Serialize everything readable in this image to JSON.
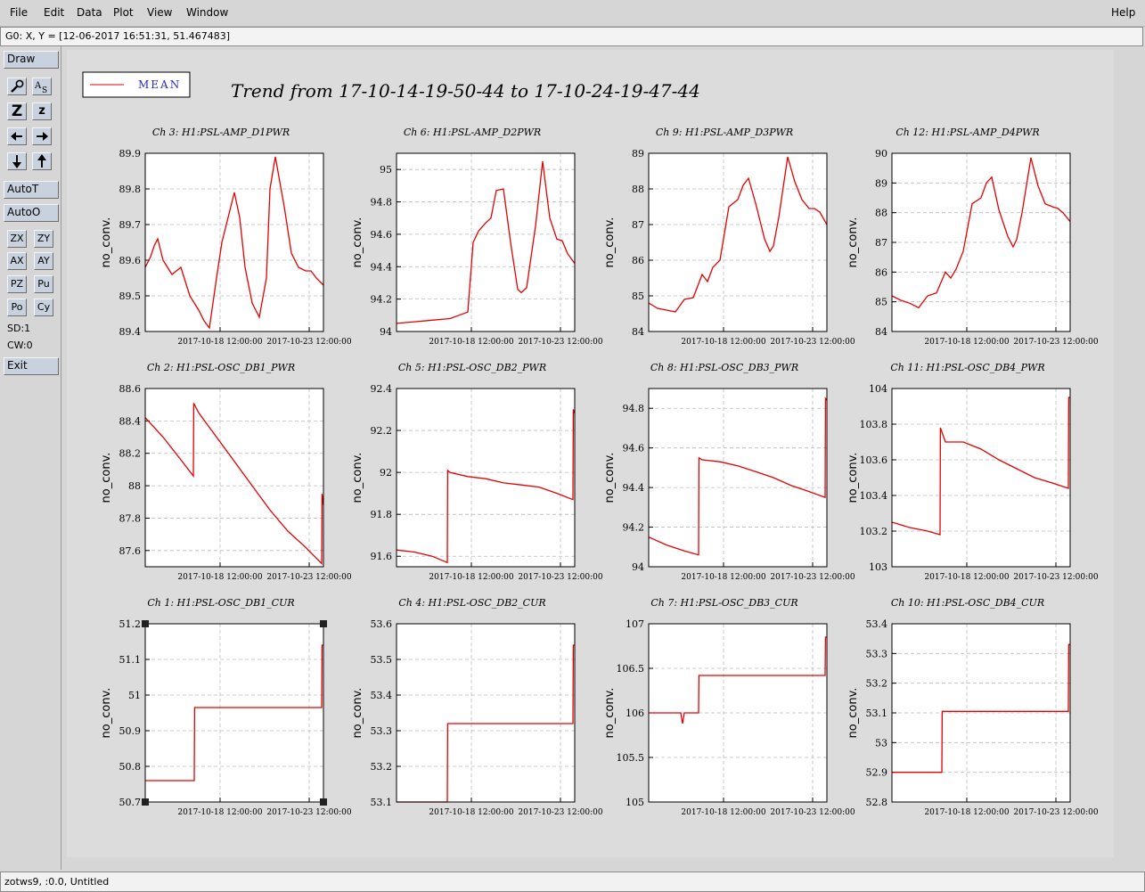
{
  "menubar": {
    "items": [
      "File",
      "Edit",
      "Data",
      "Plot",
      "View",
      "Window"
    ],
    "help": "Help"
  },
  "coords": "G0: X, Y = [12-06-2017 16:51:31, 51.467483]",
  "toolbar": {
    "draw": "Draw",
    "autot": "AutoT",
    "autoo": "AutoO",
    "z_big": "Z",
    "z_small": "z",
    "grid": [
      "ZX",
      "ZY",
      "AX",
      "AY",
      "PZ",
      "Pu",
      "Po",
      "Cy"
    ],
    "sd": "SD:1",
    "cw": "CW:0",
    "exit": "Exit"
  },
  "status": "zotws9, :0.0, Untitled",
  "legend": {
    "label": "MEAN",
    "color": "#e60000"
  },
  "title": "Trend from 17-10-14-19-50-44 to 17-10-24-19-47-44",
  "colors": {
    "series": "#e60000",
    "grid": "#bbbbbb",
    "panel": "#d6d6d6"
  },
  "chart_data": [
    {
      "type": "line",
      "title": "Ch 3: H1:PSL-AMP_D1PWR",
      "ylabel": "no_conv.",
      "ylim": [
        89.4,
        89.9
      ],
      "yticks": [
        "89.4",
        "89.5",
        "89.6",
        "89.7",
        "89.8",
        "89.9"
      ],
      "xticks": [
        "2017-10-18 12:00:00",
        "2017-10-23 12:00:00"
      ],
      "x": [
        0,
        0.3,
        0.5,
        0.7,
        1,
        1.5,
        2,
        2.5,
        3,
        3.3,
        3.6,
        4,
        4.3,
        4.8,
        5,
        5.3,
        5.6,
        6,
        6.4,
        6.8,
        7,
        7.3,
        7.8,
        8.2,
        8.6,
        9,
        9.3,
        9.6,
        10
      ],
      "y": [
        89.58,
        89.61,
        89.64,
        89.66,
        89.6,
        89.56,
        89.58,
        89.5,
        89.46,
        89.43,
        89.41,
        89.55,
        89.65,
        89.75,
        89.79,
        89.72,
        89.58,
        89.48,
        89.44,
        89.55,
        89.8,
        89.89,
        89.75,
        89.62,
        89.58,
        89.57,
        89.57,
        89.55,
        89.53
      ]
    },
    {
      "type": "line",
      "title": "Ch 6: H1:PSL-AMP_D2PWR",
      "ylabel": "no_conv.",
      "ylim": [
        94,
        95.1
      ],
      "yticks": [
        "94",
        "94.2",
        "94.4",
        "94.6",
        "94.8",
        "95"
      ],
      "xticks": [
        "2017-10-18 12:00:00",
        "2017-10-23 12:00:00"
      ],
      "x": [
        0,
        1,
        2,
        3,
        3.5,
        4,
        4.3,
        4.6,
        5,
        5.3,
        5.6,
        6,
        6.4,
        6.8,
        7,
        7.3,
        7.8,
        8.2,
        8.6,
        9,
        9.3,
        9.6,
        10
      ],
      "y": [
        94.05,
        94.06,
        94.07,
        94.08,
        94.1,
        94.12,
        94.55,
        94.62,
        94.67,
        94.7,
        94.87,
        94.88,
        94.55,
        94.26,
        94.24,
        94.27,
        94.65,
        95.05,
        94.7,
        94.57,
        94.56,
        94.48,
        94.42
      ]
    },
    {
      "type": "line",
      "title": "Ch 9: H1:PSL-AMP_D3PWR",
      "ylabel": "no_conv.",
      "ylim": [
        84,
        89
      ],
      "yticks": [
        "84",
        "85",
        "86",
        "87",
        "88",
        "89"
      ],
      "xticks": [
        "2017-10-18 12:00:00",
        "2017-10-23 12:00:00"
      ],
      "x": [
        0,
        0.5,
        1,
        1.5,
        2,
        2.5,
        3,
        3.3,
        3.6,
        4,
        4.5,
        5,
        5.3,
        5.6,
        6,
        6.5,
        6.8,
        7,
        7.3,
        7.8,
        8.2,
        8.6,
        9,
        9.3,
        9.6,
        10
      ],
      "y": [
        84.8,
        84.65,
        84.6,
        84.55,
        84.9,
        84.95,
        85.6,
        85.4,
        85.8,
        86.0,
        87.5,
        87.7,
        88.1,
        88.3,
        87.6,
        86.6,
        86.25,
        86.4,
        87.2,
        88.9,
        88.2,
        87.7,
        87.45,
        87.45,
        87.35,
        87.0
      ]
    },
    {
      "type": "line",
      "title": "Ch 12: H1:PSL-AMP_D4PWR",
      "ylabel": "no_conv.",
      "ylim": [
        84,
        90
      ],
      "yticks": [
        "84",
        "85",
        "86",
        "87",
        "88",
        "89",
        "90"
      ],
      "xticks": [
        "2017-10-18 12:00:00",
        "2017-10-23 12:00:00"
      ],
      "x": [
        0,
        0.5,
        1,
        1.5,
        2,
        2.5,
        3,
        3.3,
        3.6,
        4,
        4.5,
        5,
        5.3,
        5.6,
        6,
        6.5,
        6.8,
        7,
        7.3,
        7.8,
        8.2,
        8.6,
        9,
        9.3,
        9.6,
        10
      ],
      "y": [
        85.2,
        85.05,
        84.95,
        84.8,
        85.2,
        85.3,
        86.0,
        85.8,
        86.1,
        86.7,
        88.3,
        88.5,
        89.0,
        89.2,
        88.1,
        87.2,
        86.85,
        87.1,
        88.0,
        89.85,
        88.9,
        88.3,
        88.2,
        88.15,
        88.0,
        87.7
      ]
    },
    {
      "type": "line",
      "title": "Ch 2: H1:PSL-OSC_DB1_PWR",
      "ylabel": "no_conv.",
      "ylim": [
        87.5,
        88.6
      ],
      "yticks": [
        "87.6",
        "87.8",
        "88",
        "88.2",
        "88.4",
        "88.6"
      ],
      "xticks": [
        "2017-10-18 12:00:00",
        "2017-10-23 12:00:00"
      ],
      "x": [
        0,
        1,
        2,
        2.7,
        2.72,
        3,
        4,
        5,
        6,
        7,
        8,
        9,
        9.9,
        9.92,
        10
      ],
      "y": [
        88.42,
        88.3,
        88.16,
        88.06,
        88.51,
        88.45,
        88.3,
        88.15,
        88.0,
        87.85,
        87.72,
        87.62,
        87.52,
        87.95,
        87.88
      ]
    },
    {
      "type": "line",
      "title": "Ch 5: H1:PSL-OSC_DB2_PWR",
      "ylabel": "no_conv.",
      "ylim": [
        91.55,
        92.4
      ],
      "yticks": [
        "91.6",
        "91.8",
        "92",
        "92.2",
        "92.4"
      ],
      "xticks": [
        "2017-10-18 12:00:00",
        "2017-10-23 12:00:00"
      ],
      "x": [
        0,
        1,
        2,
        2.85,
        2.87,
        3,
        4,
        5,
        6,
        7,
        8,
        9,
        9.9,
        9.92,
        10
      ],
      "y": [
        91.63,
        91.62,
        91.6,
        91.57,
        92.01,
        92.0,
        91.98,
        91.97,
        91.95,
        91.94,
        91.93,
        91.9,
        91.87,
        92.3,
        92.28
      ]
    },
    {
      "type": "line",
      "title": "Ch 8: H1:PSL-OSC_DB3_PWR",
      "ylabel": "no_conv.",
      "ylim": [
        94,
        94.9
      ],
      "yticks": [
        "94",
        "94.2",
        "94.4",
        "94.6",
        "94.8"
      ],
      "xticks": [
        "2017-10-18 12:00:00",
        "2017-10-23 12:00:00"
      ],
      "x": [
        0,
        1,
        2,
        2.8,
        2.82,
        3,
        4,
        5,
        6,
        7,
        8,
        9,
        9.9,
        9.92,
        10
      ],
      "y": [
        94.15,
        94.11,
        94.08,
        94.06,
        94.55,
        94.54,
        94.53,
        94.51,
        94.48,
        94.45,
        94.41,
        94.38,
        94.35,
        94.85,
        94.84
      ]
    },
    {
      "type": "line",
      "title": "Ch 11: H1:PSL-OSC_DB4_PWR",
      "ylabel": "no_conv.",
      "ylim": [
        103,
        104
      ],
      "yticks": [
        "103",
        "103.2",
        "103.4",
        "103.6",
        "103.8",
        "104"
      ],
      "xticks": [
        "2017-10-18 12:00:00",
        "2017-10-23 12:00:00"
      ],
      "x": [
        0,
        1,
        2,
        2.7,
        2.72,
        3,
        4,
        5,
        6,
        7,
        8,
        9,
        9.9,
        9.92,
        10
      ],
      "y": [
        103.25,
        103.22,
        103.2,
        103.18,
        103.78,
        103.7,
        103.7,
        103.66,
        103.6,
        103.55,
        103.5,
        103.47,
        103.44,
        103.95,
        103.95
      ]
    },
    {
      "type": "line",
      "title": "Ch 1: H1:PSL-OSC_DB1_CUR",
      "ylabel": "no_conv.",
      "ylim": [
        50.7,
        51.2
      ],
      "yticks": [
        "50.7",
        "50.8",
        "50.9",
        "51",
        "51.1",
        "51.2"
      ],
      "xticks": [
        "2017-10-18 12:00:00",
        "2017-10-23 12:00:00"
      ],
      "x": [
        0,
        2.75,
        2.77,
        9.9,
        9.92,
        10
      ],
      "y": [
        50.76,
        50.76,
        50.965,
        50.965,
        51.14,
        51.14
      ]
    },
    {
      "type": "line",
      "title": "Ch 4: H1:PSL-OSC_DB2_CUR",
      "ylabel": "no_conv.",
      "ylim": [
        53.1,
        53.6
      ],
      "yticks": [
        "53.1",
        "53.2",
        "53.3",
        "53.4",
        "53.5",
        "53.6"
      ],
      "xticks": [
        "2017-10-18 12:00:00",
        "2017-10-23 12:00:00"
      ],
      "x": [
        0,
        2.85,
        2.87,
        9.9,
        9.92,
        10
      ],
      "y": [
        53.1,
        53.1,
        53.32,
        53.32,
        53.54,
        53.54
      ]
    },
    {
      "type": "line",
      "title": "Ch 7: H1:PSL-OSC_DB3_CUR",
      "ylabel": "no_conv.",
      "ylim": [
        105,
        107
      ],
      "yticks": [
        "105",
        "105.5",
        "106",
        "106.5",
        "107"
      ],
      "xticks": [
        "2017-10-18 12:00:00",
        "2017-10-23 12:00:00"
      ],
      "x": [
        0,
        1.8,
        1.9,
        2.0,
        2.8,
        2.82,
        9.9,
        9.92,
        10
      ],
      "y": [
        106.0,
        106.0,
        105.88,
        106.0,
        106.0,
        106.42,
        106.42,
        106.85,
        106.85
      ]
    },
    {
      "type": "line",
      "title": "Ch 10: H1:PSL-OSC_DB4_CUR",
      "ylabel": "no_conv.",
      "ylim": [
        52.8,
        53.4
      ],
      "yticks": [
        "52.8",
        "52.9",
        "53",
        "53.1",
        "53.2",
        "53.3",
        "53.4"
      ],
      "xticks": [
        "2017-10-18 12:00:00",
        "2017-10-23 12:00:00"
      ],
      "x": [
        0,
        2.8,
        2.82,
        9.9,
        9.92,
        10
      ],
      "y": [
        52.9,
        52.9,
        53.105,
        53.105,
        53.33,
        53.33
      ]
    }
  ]
}
